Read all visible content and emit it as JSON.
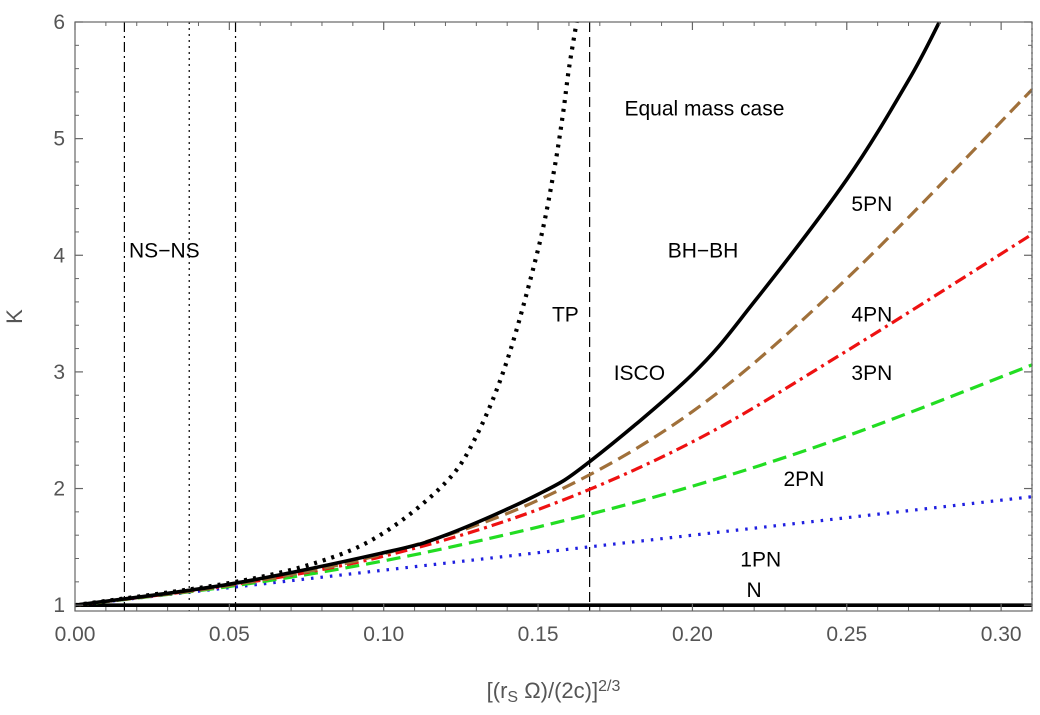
{
  "chart_data": {
    "type": "line",
    "title": "",
    "xlabel": "[(r_S Ω)/(2c)]^{2/3}",
    "xlabel_parts": {
      "open": "[(r",
      "sub": "S",
      "mid": " Ω)/(2c)]",
      "sup": "2/3"
    },
    "ylabel": "K",
    "xlim": [
      0,
      0.31
    ],
    "ylim": [
      0.95,
      6
    ],
    "xticks": [
      "0.00",
      "0.05",
      "0.10",
      "0.15",
      "0.20",
      "0.25",
      "0.30"
    ],
    "yticks": [
      "1",
      "2",
      "3",
      "4",
      "5",
      "6"
    ],
    "grid": false,
    "series": [
      {
        "name": "N",
        "color": "#000000",
        "style": "solid",
        "x": [
          0,
          0.31
        ],
        "y": [
          1.0,
          1.0
        ]
      },
      {
        "name": "1PN",
        "color": "#1f1fe0",
        "style": "dotted",
        "x": [
          0,
          0.05,
          0.1,
          0.15,
          0.2,
          0.25,
          0.31
        ],
        "y": [
          1.0,
          1.15,
          1.3,
          1.45,
          1.6,
          1.75,
          1.93
        ]
      },
      {
        "name": "2PN",
        "color": "#22dd22",
        "style": "dashed",
        "x": [
          0,
          0.05,
          0.1,
          0.15,
          0.2,
          0.25,
          0.31
        ],
        "y": [
          1.0,
          1.16,
          1.38,
          1.67,
          2.02,
          2.45,
          3.06
        ]
      },
      {
        "name": "3PN",
        "color": "#ee1111",
        "style": "dashdot",
        "x": [
          0,
          0.05,
          0.1,
          0.15,
          0.2,
          0.25,
          0.31
        ],
        "y": [
          1.0,
          1.17,
          1.42,
          1.82,
          2.4,
          3.18,
          4.18
        ]
      },
      {
        "name": "4PN",
        "color": "#a0703a",
        "style": "dashed",
        "x": [
          0,
          0.05,
          0.1,
          0.15,
          0.2,
          0.25,
          0.31
        ],
        "y": [
          1.0,
          1.17,
          1.44,
          1.9,
          2.66,
          3.8,
          5.42
        ]
      },
      {
        "name": "BH−BH",
        "color": "#000000",
        "style": "solid",
        "x": [
          0,
          0.05,
          0.1,
          0.12,
          0.15,
          0.1667,
          0.2,
          0.22,
          0.25,
          0.27,
          0.28
        ],
        "y": [
          1.0,
          1.18,
          1.45,
          1.6,
          1.95,
          2.23,
          2.98,
          3.6,
          4.65,
          5.5,
          6.0
        ]
      },
      {
        "name": "TP",
        "color": "#000000",
        "style": "dotted-bold",
        "x": [
          0,
          0.05,
          0.08,
          0.1,
          0.12,
          0.13,
          0.14,
          0.15,
          0.155,
          0.158,
          0.16,
          0.1625
        ],
        "y": [
          1.0,
          1.19,
          1.38,
          1.62,
          2.05,
          2.45,
          3.1,
          4.05,
          4.7,
          5.2,
          5.6,
          6.0
        ]
      }
    ],
    "vlines": [
      {
        "x": 0.016,
        "style": "dashdot"
      },
      {
        "x": 0.037,
        "style": "dotted"
      },
      {
        "x": 0.052,
        "style": "dashdot"
      },
      {
        "x": 0.1667,
        "style": "dashed"
      },
      {
        "x": 0.31,
        "style": "dotted"
      }
    ],
    "annotations": [
      {
        "text": "Equal mass case",
        "x": 0.178,
        "y": 5.2
      },
      {
        "text": "NS−NS",
        "x": 0.0175,
        "y": 3.98
      },
      {
        "text": "BH−BH",
        "x": 0.192,
        "y": 3.98
      },
      {
        "text": "5PN",
        "x": 0.2515,
        "y": 4.38
      },
      {
        "text": "4PN",
        "x": 0.2515,
        "y": 3.43
      },
      {
        "text": "TP",
        "x": 0.1545,
        "y": 3.43
      },
      {
        "text": "ISCO",
        "x": 0.1745,
        "y": 2.93
      },
      {
        "text": "3PN",
        "x": 0.2515,
        "y": 2.93
      },
      {
        "text": "2PN",
        "x": 0.2295,
        "y": 2.02
      },
      {
        "text": "1PN",
        "x": 0.2155,
        "y": 1.33
      },
      {
        "text": "N",
        "x": 0.2175,
        "y": 1.07
      }
    ]
  }
}
